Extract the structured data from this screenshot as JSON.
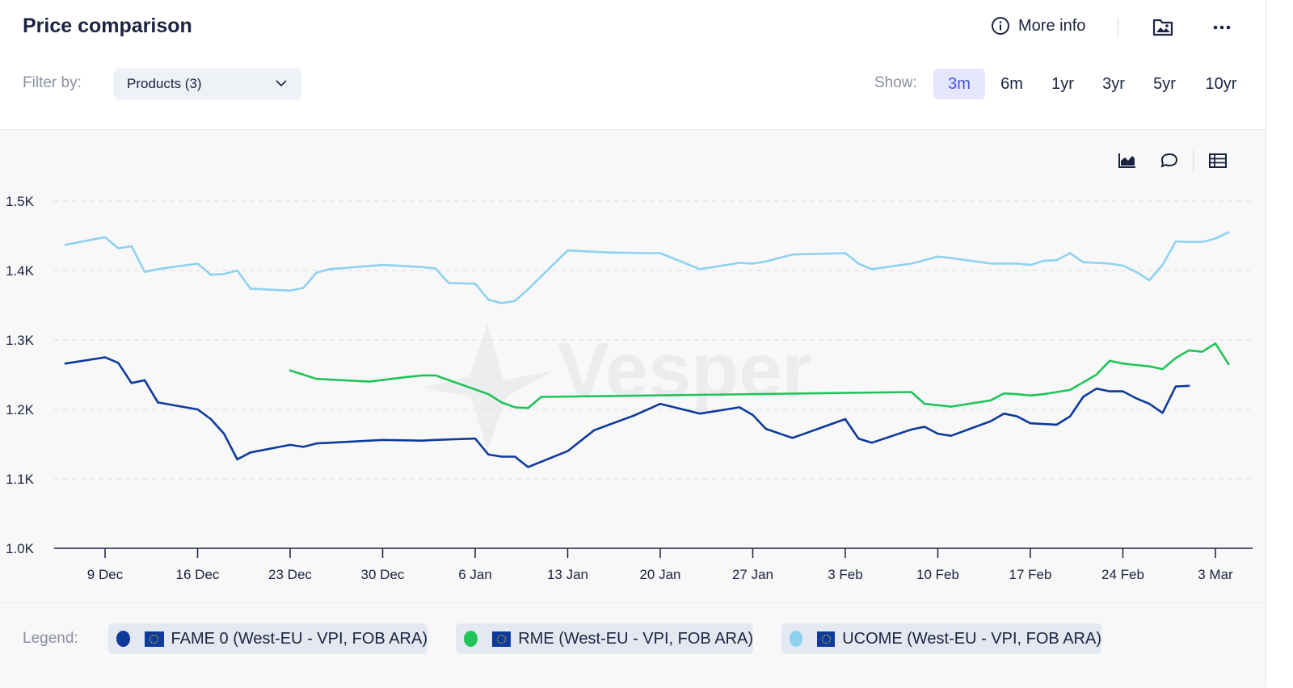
{
  "header": {
    "title": "Price comparison",
    "more_info": "More info"
  },
  "filter": {
    "label": "Filter by:",
    "value": "Products (3)"
  },
  "show": {
    "label": "Show:",
    "options": [
      "3m",
      "6m",
      "1yr",
      "3yr",
      "5yr",
      "10yr"
    ],
    "active": "3m"
  },
  "watermark": "Vesper",
  "legend": {
    "label": "Legend:",
    "items": [
      {
        "name": "FAME 0 (West-EU - VPI, FOB ARA)",
        "color": "#0d3a9b"
      },
      {
        "name": "RME (West-EU - VPI, FOB ARA)",
        "color": "#22c35a"
      },
      {
        "name": "UCOME (West-EU - VPI, FOB ARA)",
        "color": "#8fd1f0"
      }
    ]
  },
  "chart_data": {
    "type": "line",
    "title": "Price comparison",
    "xlabel": "",
    "ylabel": "",
    "x_unit": "days since 9 Dec",
    "xlim": [
      -3.5,
      87.5
    ],
    "ylim": [
      1000,
      1550
    ],
    "y_ticks": [
      1000,
      1100,
      1200,
      1300,
      1400,
      1500
    ],
    "y_tick_labels": [
      "1.0K",
      "1.1K",
      "1.2K",
      "1.3K",
      "1.4K",
      "1.5K"
    ],
    "x_ticks": [
      0,
      7,
      14,
      21,
      28,
      35,
      42,
      49,
      56,
      63,
      70,
      77,
      84
    ],
    "x_tick_labels": [
      "9 Dec",
      "16 Dec",
      "23 Dec",
      "30 Dec",
      "6 Jan",
      "13 Jan",
      "20 Jan",
      "27 Jan",
      "3 Feb",
      "10 Feb",
      "17 Feb",
      "24 Feb",
      "3 Mar"
    ],
    "grid": true,
    "series": [
      {
        "name": "FAME 0 (West-EU - VPI, FOB ARA)",
        "color": "#0d3a9b",
        "x": [
          -3,
          0,
          1,
          2,
          3,
          4,
          7,
          8,
          9,
          10,
          11,
          14,
          15,
          16,
          17,
          21,
          24,
          25,
          28,
          29,
          30,
          31,
          32,
          35,
          37,
          40,
          42,
          45,
          48,
          49,
          50,
          52,
          56,
          57,
          58,
          61,
          62,
          63,
          64,
          67,
          68,
          69,
          70,
          71,
          72,
          73,
          74,
          75,
          76,
          77,
          78,
          79,
          80,
          81,
          82
        ],
        "y": [
          1266,
          1275,
          1267,
          1238,
          1242,
          1210,
          1200,
          1186,
          1165,
          1128,
          1138,
          1149,
          1146,
          1151,
          1152,
          1156,
          1155,
          1156,
          1158,
          1135,
          1132,
          1132,
          1117,
          1140,
          1170,
          1191,
          1208,
          1194,
          1203,
          1192,
          1172,
          1159,
          1186,
          1158,
          1152,
          1171,
          1175,
          1165,
          1162,
          1183,
          1194,
          1190,
          1180,
          1179,
          1178,
          1190,
          1218,
          1230,
          1226,
          1226,
          1216,
          1208,
          1195,
          1233,
          1234
        ]
      },
      {
        "name": "RME (West-EU - VPI, FOB ARA)",
        "color": "#22c35a",
        "x": [
          14,
          16,
          20,
          23,
          24,
          25,
          29,
          30,
          31,
          32,
          33,
          61,
          62,
          64,
          67,
          68,
          69,
          70,
          71,
          72,
          73,
          74,
          75,
          76,
          77,
          78,
          79,
          80,
          81,
          82,
          83,
          84,
          85
        ],
        "y": [
          1256,
          1244,
          1240,
          1247,
          1249,
          1249,
          1222,
          1210,
          1203,
          1202,
          1218,
          1225,
          1208,
          1204,
          1213,
          1223,
          1222,
          1220,
          1222,
          1225,
          1228,
          1239,
          1250,
          1270,
          1266,
          1264,
          1262,
          1258,
          1274,
          1285,
          1283,
          1295,
          1265
        ]
      },
      {
        "name": "UCOME (West-EU - VPI, FOB ARA)",
        "color": "#8fd1f0",
        "x": [
          -3,
          0,
          1,
          2,
          3,
          4,
          7,
          8,
          9,
          10,
          11,
          14,
          15,
          16,
          17,
          21,
          24,
          25,
          26,
          28,
          29,
          30,
          31,
          32,
          35,
          38,
          41,
          42,
          45,
          48,
          49,
          50,
          52,
          56,
          57,
          58,
          61,
          62,
          63,
          64,
          67,
          68,
          69,
          70,
          71,
          72,
          73,
          74,
          75,
          76,
          77,
          78,
          79,
          80,
          81,
          82,
          83,
          84,
          85
        ],
        "y": [
          1437,
          1448,
          1432,
          1435,
          1398,
          1402,
          1410,
          1394,
          1395,
          1400,
          1374,
          1371,
          1375,
          1397,
          1402,
          1408,
          1405,
          1403,
          1382,
          1381,
          1358,
          1353,
          1356,
          1373,
          1429,
          1426,
          1425,
          1425,
          1402,
          1411,
          1410,
          1413,
          1423,
          1425,
          1410,
          1402,
          1410,
          1415,
          1420,
          1418,
          1410,
          1410,
          1410,
          1408,
          1414,
          1415,
          1425,
          1412,
          1411,
          1410,
          1407,
          1398,
          1386,
          1408,
          1442,
          1441,
          1441,
          1446,
          1455
        ]
      }
    ]
  }
}
